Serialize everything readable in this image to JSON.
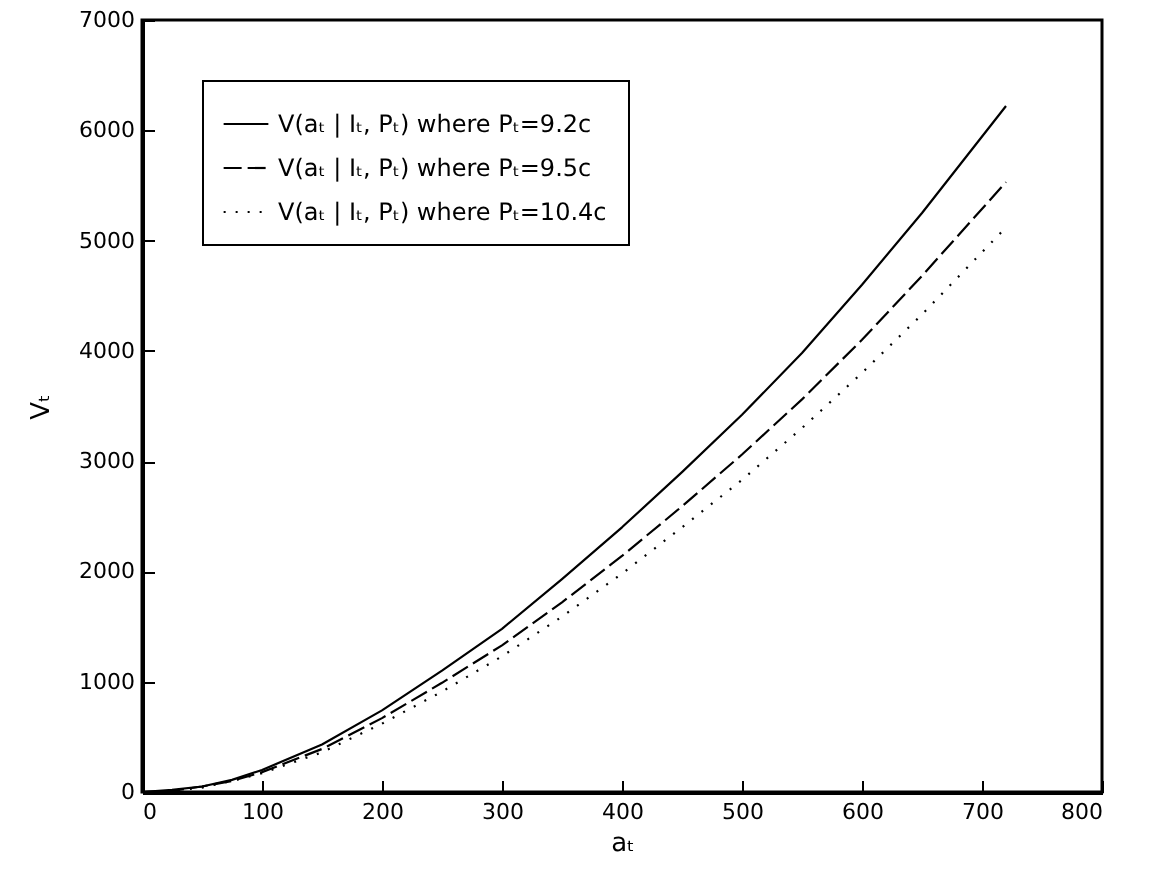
{
  "chart_data": {
    "type": "line",
    "xlabel": "aₜ",
    "ylabel": "Vₜ",
    "x": [
      0,
      25,
      50,
      75,
      100,
      150,
      200,
      250,
      300,
      350,
      400,
      450,
      500,
      550,
      600,
      650,
      720
    ],
    "series": [
      {
        "name": "V(aₜ | Iₜ, Pₜ) where Pₜ=9.2c",
        "color": "#000000",
        "line_style": "solid",
        "values": [
          0,
          20,
          50,
          110,
          200,
          430,
          740,
          1100,
          1480,
          1930,
          2400,
          2900,
          3420,
          3980,
          4600,
          5250,
          6220
        ]
      },
      {
        "name": "V(aₜ | Iₜ, Pₜ) where Pₜ=9.5c",
        "color": "#000000",
        "line_style": "dashed",
        "values": [
          0,
          10,
          50,
          100,
          180,
          390,
          670,
          990,
          1330,
          1720,
          2140,
          2590,
          3060,
          3560,
          4100,
          4680,
          5530
        ]
      },
      {
        "name": "V(aₜ | Iₜ, Pₜ) where Pₜ=10.4c",
        "color": "#000000",
        "line_style": "dotted",
        "values": [
          0,
          10,
          40,
          100,
          170,
          360,
          620,
          910,
          1230,
          1590,
          1980,
          2400,
          2830,
          3300,
          3800,
          4330,
          5120
        ]
      }
    ],
    "xlim": [
      0,
      800
    ],
    "xticks": [
      0,
      100,
      200,
      300,
      400,
      500,
      600,
      700,
      800
    ],
    "ylim": [
      0,
      7000
    ],
    "yticks": [
      0,
      1000,
      2000,
      3000,
      4000,
      5000,
      6000,
      7000
    ],
    "grid": false,
    "legend": "top left",
    "marker": "none"
  }
}
